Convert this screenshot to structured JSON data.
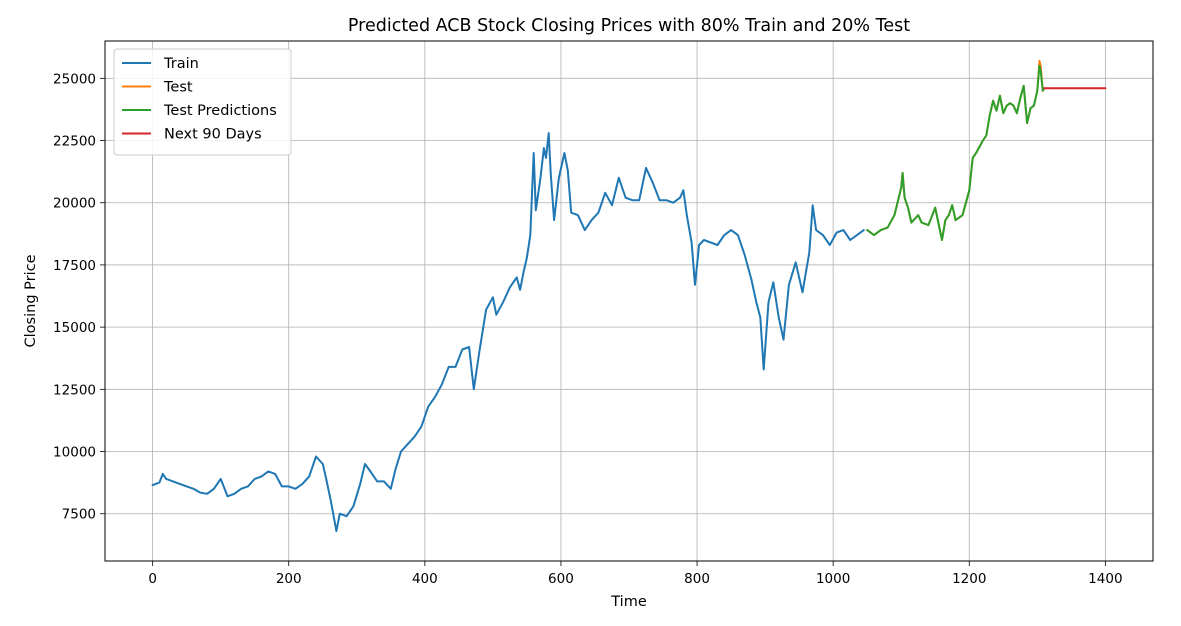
{
  "chart_data": {
    "type": "line",
    "title": "Predicted ACB Stock Closing Prices with 80% Train and 20% Test",
    "xlabel": "Time",
    "ylabel": "Closing Price",
    "xlim": [
      -70,
      1470
    ],
    "ylim": [
      5600,
      26500
    ],
    "xticks": [
      0,
      200,
      400,
      600,
      800,
      1000,
      1200,
      1400
    ],
    "yticks": [
      7500,
      10000,
      12500,
      15000,
      17500,
      20000,
      22500,
      25000
    ],
    "grid": true,
    "legend_position": "top-left",
    "series": [
      {
        "name": "Train",
        "color": "#1f77b4",
        "points": [
          [
            0,
            8650
          ],
          [
            10,
            8750
          ],
          [
            15,
            9100
          ],
          [
            20,
            8900
          ],
          [
            30,
            8800
          ],
          [
            40,
            8700
          ],
          [
            50,
            8600
          ],
          [
            60,
            8500
          ],
          [
            70,
            8350
          ],
          [
            80,
            8300
          ],
          [
            90,
            8500
          ],
          [
            100,
            8900
          ],
          [
            110,
            8200
          ],
          [
            120,
            8300
          ],
          [
            130,
            8500
          ],
          [
            140,
            8600
          ],
          [
            150,
            8900
          ],
          [
            160,
            9000
          ],
          [
            170,
            9200
          ],
          [
            180,
            9100
          ],
          [
            190,
            8600
          ],
          [
            200,
            8600
          ],
          [
            210,
            8500
          ],
          [
            220,
            8700
          ],
          [
            230,
            9000
          ],
          [
            240,
            9800
          ],
          [
            250,
            9500
          ],
          [
            255,
            8900
          ],
          [
            262,
            8000
          ],
          [
            270,
            6800
          ],
          [
            275,
            7500
          ],
          [
            285,
            7400
          ],
          [
            295,
            7800
          ],
          [
            305,
            8700
          ],
          [
            312,
            9500
          ],
          [
            320,
            9200
          ],
          [
            330,
            8800
          ],
          [
            340,
            8800
          ],
          [
            350,
            8500
          ],
          [
            357,
            9300
          ],
          [
            365,
            10000
          ],
          [
            375,
            10300
          ],
          [
            385,
            10600
          ],
          [
            395,
            11000
          ],
          [
            405,
            11800
          ],
          [
            415,
            12200
          ],
          [
            425,
            12700
          ],
          [
            435,
            13400
          ],
          [
            445,
            13400
          ],
          [
            455,
            14100
          ],
          [
            465,
            14200
          ],
          [
            472,
            12500
          ],
          [
            480,
            14000
          ],
          [
            490,
            15700
          ],
          [
            500,
            16200
          ],
          [
            505,
            15500
          ],
          [
            515,
            16000
          ],
          [
            525,
            16600
          ],
          [
            535,
            17000
          ],
          [
            540,
            16500
          ],
          [
            545,
            17200
          ],
          [
            550,
            17800
          ],
          [
            555,
            18700
          ],
          [
            560,
            22000
          ],
          [
            563,
            19700
          ],
          [
            570,
            21000
          ],
          [
            575,
            22200
          ],
          [
            578,
            21800
          ],
          [
            582,
            22800
          ],
          [
            585,
            21200
          ],
          [
            590,
            19300
          ],
          [
            597,
            21000
          ],
          [
            605,
            22000
          ],
          [
            610,
            21300
          ],
          [
            615,
            19600
          ],
          [
            625,
            19500
          ],
          [
            635,
            18900
          ],
          [
            645,
            19300
          ],
          [
            655,
            19600
          ],
          [
            665,
            20400
          ],
          [
            675,
            19900
          ],
          [
            685,
            21000
          ],
          [
            695,
            20200
          ],
          [
            705,
            20100
          ],
          [
            715,
            20100
          ],
          [
            725,
            21400
          ],
          [
            735,
            20800
          ],
          [
            745,
            20100
          ],
          [
            755,
            20100
          ],
          [
            765,
            20000
          ],
          [
            775,
            20200
          ],
          [
            780,
            20500
          ],
          [
            785,
            19500
          ],
          [
            792,
            18400
          ],
          [
            797,
            16700
          ],
          [
            803,
            18300
          ],
          [
            810,
            18500
          ],
          [
            820,
            18400
          ],
          [
            830,
            18300
          ],
          [
            840,
            18700
          ],
          [
            850,
            18900
          ],
          [
            860,
            18700
          ],
          [
            870,
            17900
          ],
          [
            880,
            16900
          ],
          [
            887,
            16000
          ],
          [
            893,
            15400
          ],
          [
            898,
            13300
          ],
          [
            905,
            16000
          ],
          [
            912,
            16800
          ],
          [
            920,
            15400
          ],
          [
            927,
            14500
          ],
          [
            935,
            16700
          ],
          [
            945,
            17600
          ],
          [
            955,
            16400
          ],
          [
            965,
            18000
          ],
          [
            970,
            19900
          ],
          [
            975,
            18900
          ],
          [
            985,
            18700
          ],
          [
            995,
            18300
          ],
          [
            1005,
            18800
          ],
          [
            1015,
            18900
          ],
          [
            1025,
            18500
          ],
          [
            1035,
            18700
          ],
          [
            1045,
            18900
          ]
        ]
      },
      {
        "name": "Test",
        "color": "#ff7f0e",
        "points": [
          [
            1050,
            18900
          ],
          [
            1060,
            18700
          ],
          [
            1070,
            18900
          ],
          [
            1080,
            19000
          ],
          [
            1090,
            19500
          ],
          [
            1100,
            20600
          ],
          [
            1102,
            21200
          ],
          [
            1105,
            20200
          ],
          [
            1110,
            19800
          ],
          [
            1115,
            19200
          ],
          [
            1125,
            19500
          ],
          [
            1130,
            19200
          ],
          [
            1140,
            19100
          ],
          [
            1150,
            19800
          ],
          [
            1160,
            18500
          ],
          [
            1165,
            19300
          ],
          [
            1170,
            19500
          ],
          [
            1175,
            19900
          ],
          [
            1180,
            19300
          ],
          [
            1190,
            19500
          ],
          [
            1200,
            20500
          ],
          [
            1205,
            21800
          ],
          [
            1210,
            22000
          ],
          [
            1220,
            22500
          ],
          [
            1225,
            22700
          ],
          [
            1230,
            23500
          ],
          [
            1235,
            24100
          ],
          [
            1240,
            23700
          ],
          [
            1245,
            24300
          ],
          [
            1250,
            23600
          ],
          [
            1255,
            23900
          ],
          [
            1260,
            24000
          ],
          [
            1265,
            23900
          ],
          [
            1270,
            23600
          ],
          [
            1275,
            24200
          ],
          [
            1280,
            24700
          ],
          [
            1285,
            23200
          ],
          [
            1290,
            23800
          ],
          [
            1295,
            23900
          ],
          [
            1300,
            24500
          ],
          [
            1303,
            25700
          ],
          [
            1305,
            25500
          ],
          [
            1308,
            24500
          ],
          [
            1310,
            24600
          ]
        ]
      },
      {
        "name": "Test Predictions",
        "color": "#2ca02c",
        "points": [
          [
            1050,
            18900
          ],
          [
            1060,
            18700
          ],
          [
            1070,
            18900
          ],
          [
            1080,
            19000
          ],
          [
            1090,
            19500
          ],
          [
            1100,
            20600
          ],
          [
            1102,
            21200
          ],
          [
            1105,
            20200
          ],
          [
            1110,
            19800
          ],
          [
            1115,
            19200
          ],
          [
            1125,
            19500
          ],
          [
            1130,
            19200
          ],
          [
            1140,
            19100
          ],
          [
            1150,
            19800
          ],
          [
            1160,
            18500
          ],
          [
            1165,
            19300
          ],
          [
            1170,
            19500
          ],
          [
            1175,
            19900
          ],
          [
            1180,
            19300
          ],
          [
            1190,
            19500
          ],
          [
            1200,
            20500
          ],
          [
            1205,
            21800
          ],
          [
            1210,
            22000
          ],
          [
            1220,
            22500
          ],
          [
            1225,
            22700
          ],
          [
            1230,
            23500
          ],
          [
            1235,
            24100
          ],
          [
            1240,
            23700
          ],
          [
            1245,
            24300
          ],
          [
            1250,
            23600
          ],
          [
            1255,
            23900
          ],
          [
            1260,
            24000
          ],
          [
            1265,
            23900
          ],
          [
            1270,
            23600
          ],
          [
            1275,
            24200
          ],
          [
            1280,
            24700
          ],
          [
            1285,
            23200
          ],
          [
            1290,
            23800
          ],
          [
            1295,
            23900
          ],
          [
            1300,
            24500
          ],
          [
            1303,
            25500
          ],
          [
            1305,
            25300
          ],
          [
            1308,
            24500
          ],
          [
            1310,
            24600
          ]
        ]
      },
      {
        "name": "Next 90 Days",
        "color": "#d62728",
        "points": [
          [
            1310,
            24600
          ],
          [
            1400,
            24600
          ]
        ]
      }
    ]
  }
}
